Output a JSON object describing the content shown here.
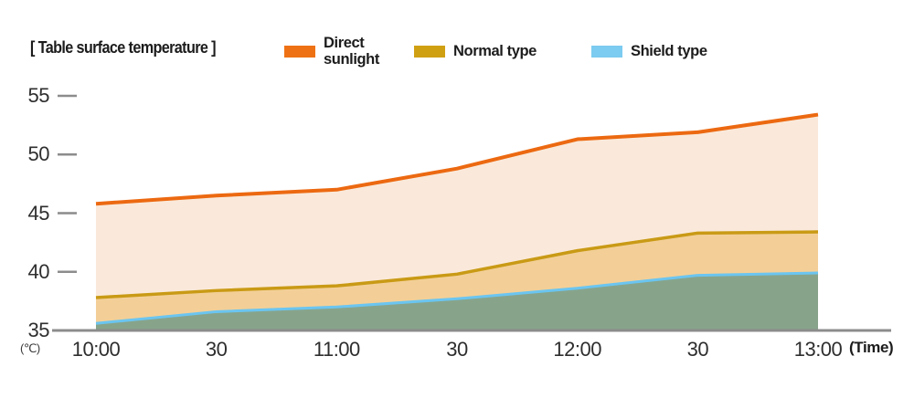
{
  "title": "[ Table surface temperature ]",
  "legend": {
    "items": [
      {
        "label": "Direct sunlight",
        "color": "#EE7214"
      },
      {
        "label": "Normal type",
        "color": "#D0A013"
      },
      {
        "label": "Shield type",
        "color": "#7CCBF0"
      }
    ]
  },
  "y_axis": {
    "unit": "(℃)",
    "tick_labels": [
      "55",
      "50",
      "45",
      "40",
      "35"
    ]
  },
  "x_axis": {
    "unit": "(Time)",
    "tick_labels": [
      "10:00",
      "30",
      "11:00",
      "30",
      "12:00",
      "30",
      "13:00"
    ]
  },
  "chart_data": {
    "type": "area",
    "title": "[ Table surface temperature ]",
    "categories": [
      "10:00",
      "10:30",
      "11:00",
      "11:30",
      "12:00",
      "12:30",
      "13:00"
    ],
    "xlabel": "Time",
    "ylabel": "Temperature (℃)",
    "ylim": [
      35,
      55
    ],
    "y_ticks": [
      55,
      50,
      45,
      40,
      35
    ],
    "grid": false,
    "legend_position": "top",
    "series": [
      {
        "name": "Direct sunlight",
        "values": [
          45.8,
          46.5,
          47.0,
          48.8,
          51.3,
          51.9,
          53.4
        ],
        "line_color": "#EC6911",
        "fill_color": "#FAE9DA"
      },
      {
        "name": "Normal type",
        "values": [
          37.8,
          38.4,
          38.8,
          39.8,
          41.8,
          43.3,
          43.4
        ],
        "line_color": "#C99A15",
        "fill_color": "#F3CF97"
      },
      {
        "name": "Shield type",
        "values": [
          35.6,
          36.6,
          37.0,
          37.7,
          38.6,
          39.7,
          39.9
        ],
        "line_color": "#6BC5F0",
        "fill_color": "#87A48B"
      }
    ],
    "axis_color": "#8C8C8C",
    "text_color": "#2E2E2E"
  }
}
